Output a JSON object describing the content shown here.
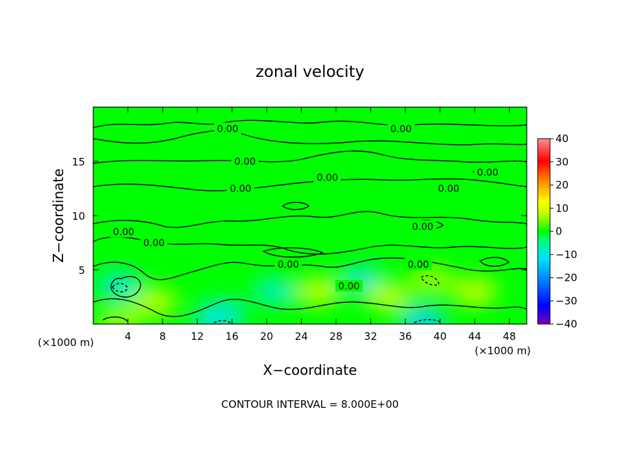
{
  "chart_data": {
    "type": "heatmap",
    "title": "zonal velocity",
    "xlabel": "X−coordinate",
    "ylabel": "Z−coordinate",
    "x_unit": "(×1000 m)",
    "y_unit": "(×1000 m)",
    "xlim": [
      0,
      50
    ],
    "ylim": [
      0,
      20
    ],
    "x_ticks": [
      4,
      8,
      12,
      16,
      20,
      24,
      28,
      32,
      36,
      40,
      44,
      48
    ],
    "y_ticks": [
      5,
      10,
      15
    ],
    "colorbar": {
      "min": -40,
      "max": 40,
      "ticks": [
        40,
        30,
        20,
        10,
        0,
        -10,
        -20,
        -30,
        -40
      ],
      "tick_labels": [
        "40",
        "30",
        "20",
        "10",
        "0",
        "−10",
        "−20",
        "−30",
        "−40"
      ]
    },
    "contour_interval": 8.0,
    "contour_labels": [
      {
        "text": "0.00",
        "x": 15.5,
        "y": 18.0
      },
      {
        "text": "0.00",
        "x": 35.5,
        "y": 18.0
      },
      {
        "text": "0.00",
        "x": 17.5,
        "y": 15.0
      },
      {
        "text": "0.00",
        "x": 27.0,
        "y": 13.5
      },
      {
        "text": "0.00",
        "x": 17.0,
        "y": 12.5
      },
      {
        "text": "0.00",
        "x": 45.5,
        "y": 14.0
      },
      {
        "text": "0.00",
        "x": 41.0,
        "y": 12.5
      },
      {
        "text": "0.00",
        "x": 3.5,
        "y": 8.5
      },
      {
        "text": "0.00",
        "x": 7.0,
        "y": 7.5
      },
      {
        "text": "0.00",
        "x": 38.0,
        "y": 9.0
      },
      {
        "text": "0.00",
        "x": 22.5,
        "y": 5.5
      },
      {
        "text": "0.00",
        "x": 37.5,
        "y": 5.5
      },
      {
        "text": "0.00",
        "x": 29.5,
        "y": 3.5
      }
    ],
    "anomalies": [
      {
        "x": 3.0,
        "y": 3.5,
        "value": -6
      },
      {
        "x": 14.0,
        "y": 0.3,
        "value": -6
      },
      {
        "x": 38.0,
        "y": 0.3,
        "value": -8
      },
      {
        "x": 3.0,
        "y": 0.3,
        "value": 4
      },
      {
        "x": 39.0,
        "y": 4.0,
        "value": 4
      },
      {
        "x": 31.0,
        "y": 4.0,
        "value": -6
      },
      {
        "x": 21.0,
        "y": 3.0,
        "value": -5
      },
      {
        "x": 15.0,
        "y": 1.0,
        "value": -6
      },
      {
        "x": 34.0,
        "y": 2.5,
        "value": 5
      },
      {
        "x": 44.0,
        "y": 3.0,
        "value": 5
      },
      {
        "x": 7.0,
        "y": 2.0,
        "value": 5
      },
      {
        "x": 26.0,
        "y": 3.0,
        "value": 5
      }
    ]
  },
  "footer": {
    "contour_note": "CONTOUR INTERVAL = 8.000E+00"
  },
  "colors": {
    "field_zero": "#00ff00",
    "contour": "#000000",
    "colormap": [
      "#7a00b4",
      "#0000ff",
      "#0060ff",
      "#00e0ff",
      "#00ff80",
      "#00ff00",
      "#c8ff00",
      "#ffff00",
      "#ff8000",
      "#ff0000",
      "#ff9090"
    ]
  }
}
